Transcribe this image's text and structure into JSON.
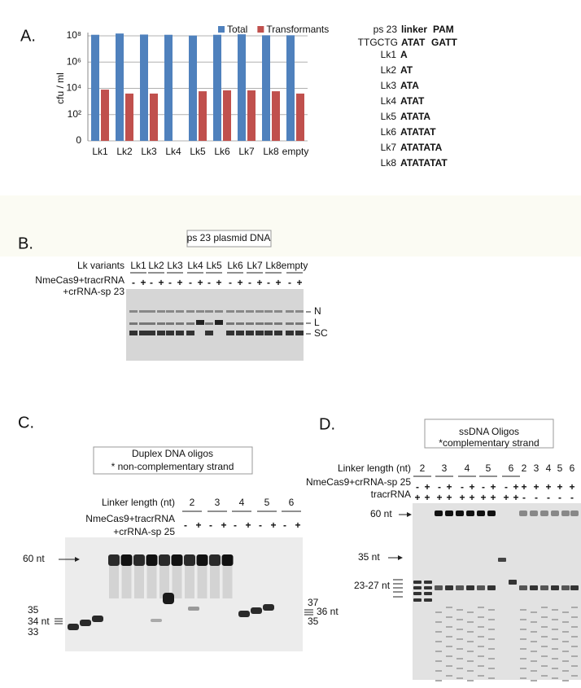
{
  "panel_a_label": "A.",
  "chart_data": {
    "type": "bar",
    "ylabel": "cfu / ml",
    "categories": [
      "Lk1",
      "Lk2",
      "Lk3",
      "Lk4",
      "Lk5",
      "Lk6",
      "Lk7",
      "Lk8",
      "empty"
    ],
    "series": [
      {
        "name": "Total",
        "color": "#4f81bd",
        "values": [
          120000000,
          150000000,
          125000000,
          120000000,
          105000000,
          120000000,
          130000000,
          110000000,
          110000000
        ]
      },
      {
        "name": "Transformants",
        "color": "#c0504d",
        "values": [
          8000,
          4000,
          4000,
          null,
          6000,
          7000,
          7000,
          6000,
          4000
        ]
      }
    ],
    "ylim": [
      1,
      100000000
    ],
    "yticks": [
      {
        "value": 1,
        "label": "0"
      },
      {
        "value": 100,
        "label": "10²"
      },
      {
        "value": 10000,
        "label": "10⁴"
      },
      {
        "value": 1000000,
        "label": "10⁶"
      },
      {
        "value": 100000000,
        "label": "10⁸"
      }
    ],
    "log_scale": true,
    "grid": true,
    "legend": "top"
  },
  "sequence_table": {
    "header": {
      "name": "ps 23",
      "linker": "linker",
      "pam": "PAM"
    },
    "reference": {
      "prefix": "TTGCTG",
      "linker": "ATAT",
      "pam": "GATT"
    },
    "rows": [
      {
        "name": "Lk1",
        "seq": "A"
      },
      {
        "name": "Lk2",
        "seq": "AT"
      },
      {
        "name": "Lk3",
        "seq": "ATA"
      },
      {
        "name": "Lk4",
        "seq": "ATAT"
      },
      {
        "name": "Lk5",
        "seq": "ATATA"
      },
      {
        "name": "Lk6",
        "seq": "ATATAT"
      },
      {
        "name": "Lk7",
        "seq": "ATATATA"
      },
      {
        "name": "Lk8",
        "seq": "ATATATAT"
      }
    ]
  },
  "panel_b": {
    "label": "B.",
    "box_title": "ps 23 plasmid DNA",
    "row_labels": [
      "Lk variants",
      "NmeCas9+tracrRNA",
      "+crRNA-sp 23"
    ],
    "lanes": [
      "Lk1",
      "Lk2",
      "Lk3",
      "Lk4",
      "Lk5",
      "Lk6",
      "Lk7",
      "Lk8",
      "empty"
    ],
    "signs": [
      "-",
      "+",
      "-",
      "+",
      "-",
      "+",
      "-",
      "+",
      "-",
      "+",
      "-",
      "+",
      "-",
      "+",
      "-",
      "+",
      "-",
      "+"
    ],
    "band_labels": [
      "N",
      "L",
      "SC"
    ]
  },
  "panel_c": {
    "label": "C.",
    "box_lines": [
      "Duplex DNA oligos",
      "* non-complementary strand"
    ],
    "row_labels": [
      "Linker length (nt)",
      "NmeCas9+tracrRNA",
      "+crRNA-sp 25"
    ],
    "lengths": [
      2,
      3,
      4,
      5,
      6
    ],
    "signs": [
      "-",
      "+",
      "-",
      "+",
      "-",
      "+",
      "-",
      "+",
      "-",
      "+"
    ],
    "marker_60": "60 nt",
    "left_markers": [
      "35",
      "34 nt",
      "33"
    ],
    "right_markers": [
      "37",
      "36 nt",
      "35"
    ]
  },
  "panel_d": {
    "label": "D.",
    "box_lines": [
      "ssDNA Oligos",
      "*complementary strand"
    ],
    "row_labels": [
      "Linker length (nt)",
      "NmeCas9+crRNA-sp 25",
      "tracrRNA"
    ],
    "lengths": [
      2,
      3,
      4,
      5,
      6,
      2,
      3,
      4,
      5,
      6
    ],
    "signs_cas9": [
      "-",
      "+",
      "-",
      "+",
      "-",
      "+",
      "-",
      "+",
      "-",
      "+",
      "+",
      "+",
      "+",
      "+",
      "+"
    ],
    "signs_tracr": [
      "+",
      "+",
      "+",
      "+",
      "+",
      "+",
      "+",
      "+",
      "+",
      "+",
      "-",
      "-",
      "-",
      "-",
      "-"
    ],
    "marker_60": "60 nt",
    "marker_35": "35 nt",
    "marker_range": "23-27 nt"
  }
}
